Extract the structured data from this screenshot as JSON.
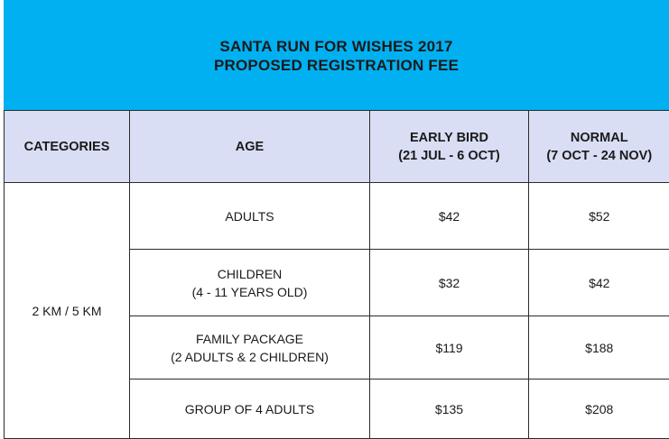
{
  "header": {
    "title_line1": "SANTA RUN FOR WISHES 2017",
    "title_line2": "PROPOSED REGISTRATION FEE"
  },
  "columns": {
    "categories": "CATEGORIES",
    "age": "AGE",
    "early_bird": {
      "label": "EARLY BIRD",
      "dates": "(21 JUL - 6 OCT)"
    },
    "normal": {
      "label": "NORMAL",
      "dates": "(7 OCT - 24 NOV)"
    }
  },
  "category": "2 KM / 5 KM",
  "rows": [
    {
      "age_line1": "ADULTS",
      "age_line2": "",
      "early_bird": "$42",
      "normal": "$52"
    },
    {
      "age_line1": "CHILDREN",
      "age_line2": "(4 - 11 YEARS OLD)",
      "early_bird": "$32",
      "normal": "$42"
    },
    {
      "age_line1": "FAMILY PACKAGE",
      "age_line2": "(2 ADULTS & 2 CHILDREN)",
      "early_bird": "$119",
      "normal": "$188"
    },
    {
      "age_line1": "GROUP OF 4 ADULTS",
      "age_line2": "",
      "early_bird": "$135",
      "normal": "$208"
    }
  ],
  "colors": {
    "banner": "#00b0f0",
    "header_row": "#d9def5",
    "border": "#2b2b2b"
  }
}
